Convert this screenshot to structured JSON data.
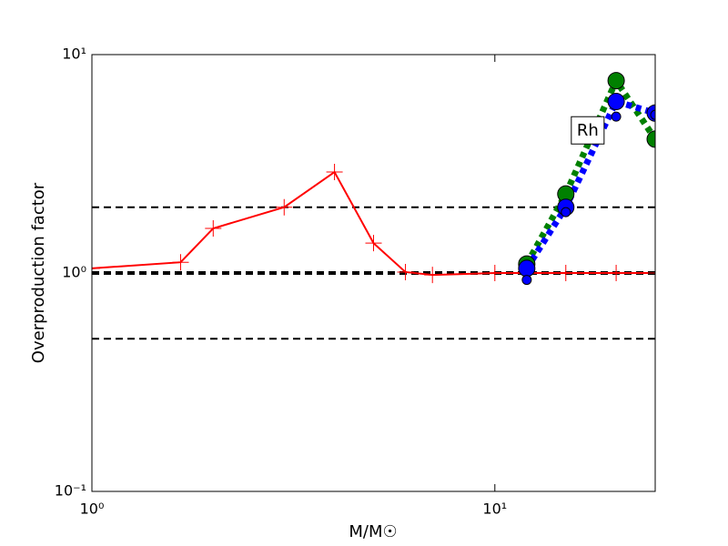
{
  "chart_data": {
    "type": "line",
    "xlabel": "M/M☉",
    "ylabel": "Overproduction factor",
    "xlog": true,
    "ylog": true,
    "xlim": [
      1,
      25
    ],
    "ylim": [
      0.1,
      10
    ],
    "xticks": [
      {
        "value": 1,
        "label": "10⁰"
      },
      {
        "value": 10,
        "label": "10¹"
      }
    ],
    "yticks": [
      {
        "value": 0.1,
        "label": "10⁻¹"
      },
      {
        "value": 1,
        "label": "10⁰"
      },
      {
        "value": 10,
        "label": "10¹"
      }
    ],
    "hlines": [
      0.5,
      1,
      2
    ],
    "annotation": {
      "text": "Rh",
      "x": 17,
      "y": 4.5
    },
    "series": [
      {
        "color": "#ff0000",
        "linestyle": "solid",
        "marker": "plus",
        "x": [
          1,
          1.66,
          2,
          3,
          4,
          5,
          6,
          7,
          10,
          12,
          15,
          20,
          25
        ],
        "values": [
          1.05,
          1.12,
          1.6,
          2.0,
          2.9,
          1.37,
          1.01,
          0.98,
          1.0,
          1.0,
          1.0,
          1.0,
          1.0
        ]
      },
      {
        "color": "#008000",
        "linestyle": "dotted",
        "marker": "circle",
        "x": [
          12,
          15,
          20,
          25
        ],
        "values": [
          1.1,
          2.3,
          7.6,
          4.1
        ]
      },
      {
        "color": "#0000ff",
        "linestyle": "dotted",
        "marker": "circle",
        "x": [
          12,
          15,
          20,
          25
        ],
        "values": [
          1.05,
          2.0,
          6.1,
          5.4
        ]
      },
      {
        "color": "#0000ff",
        "linestyle": "none",
        "marker": "small-circle",
        "x": [
          12,
          15,
          20,
          25
        ],
        "values": [
          0.93,
          1.9,
          5.2,
          5.3
        ]
      }
    ]
  }
}
